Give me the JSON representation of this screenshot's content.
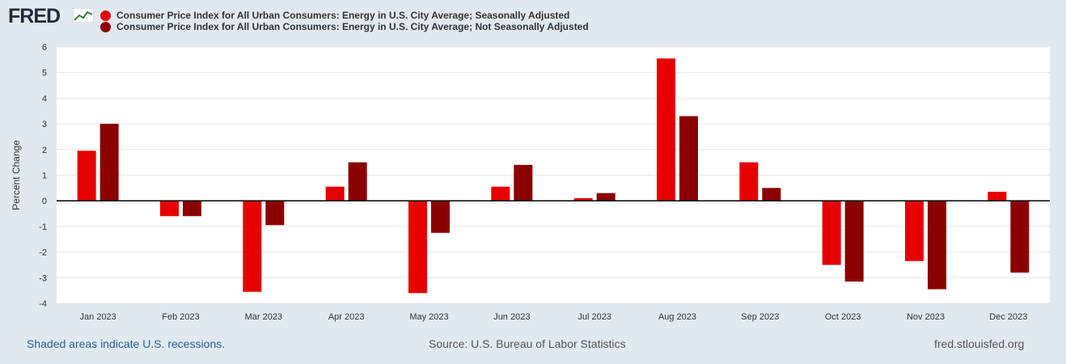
{
  "brand": {
    "logo_text": "FRED",
    "logo_icon": "line-chart-icon"
  },
  "chart_data": {
    "type": "bar",
    "categories": [
      "Jan 2023",
      "Feb 2023",
      "Mar 2023",
      "Apr 2023",
      "May 2023",
      "Jun 2023",
      "Jul 2023",
      "Aug 2023",
      "Sep 2023",
      "Oct 2023",
      "Nov 2023",
      "Dec 2023"
    ],
    "series": [
      {
        "name": "Consumer Price Index for All Urban Consumers: Energy in U.S. City Average; Seasonally Adjusted",
        "color": "#e60000",
        "values": [
          1.95,
          -0.6,
          -3.55,
          0.55,
          -3.6,
          0.55,
          0.1,
          5.55,
          1.5,
          -2.5,
          -2.35,
          0.35
        ]
      },
      {
        "name": "Consumer Price Index for All Urban Consumers: Energy in U.S. City Average; Not Seasonally Adjusted",
        "color": "#8b0000",
        "values": [
          3.0,
          -0.6,
          -0.95,
          1.5,
          -1.25,
          1.4,
          0.3,
          3.3,
          0.5,
          -3.15,
          -3.45,
          -2.8
        ]
      }
    ],
    "ylabel": "Percent Change",
    "xlabel": "",
    "ylim": [
      -4,
      6
    ],
    "yticks": [
      6,
      5,
      4,
      3,
      2,
      1,
      0,
      -1,
      -2,
      -3,
      -4
    ],
    "grid": true
  },
  "footer": {
    "recession_note": "Shaded areas indicate U.S. recessions.",
    "source": "Source: U.S. Bureau of Labor Statistics",
    "site": "fred.stlouisfed.org"
  }
}
